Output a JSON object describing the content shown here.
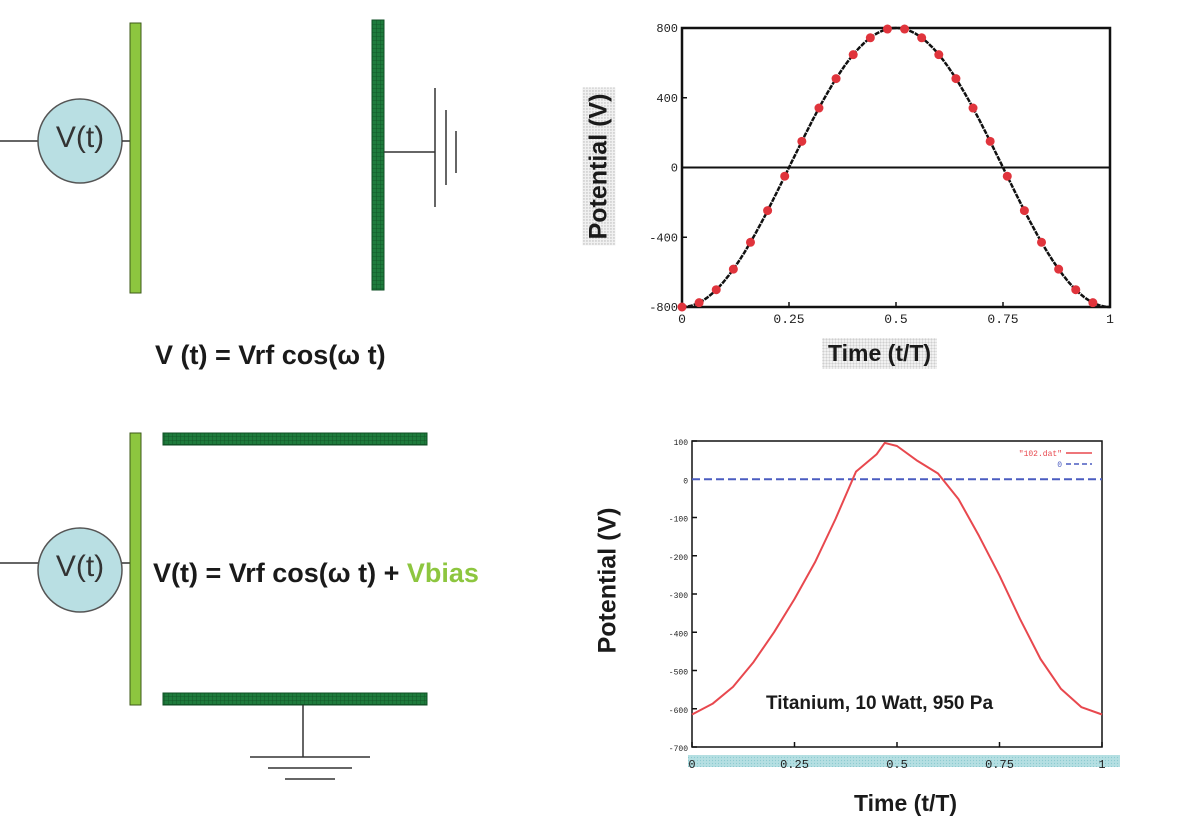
{
  "colors": {
    "powered_electrode": "#8dc63f",
    "grounded_electrode": "#1e7b3c",
    "source_fill": "#b9dfe3",
    "bias_text": "#8dc63f",
    "series_dots": "#e0343c",
    "series_red": "#e8484e",
    "series_blue": "#4a5cc0"
  },
  "diagram_top": {
    "source_label": "V(t)",
    "equation": "V (t) = Vrf cos(ω t)"
  },
  "diagram_bottom": {
    "source_label": "V(t)",
    "equation_main": "V(t) = Vrf cos(ω t) + ",
    "equation_bias": "Vbias"
  },
  "chart_data": [
    {
      "type": "line",
      "title": "",
      "xlabel": "Time (t/T)",
      "ylabel": "Potential (V)",
      "xlim": [
        0,
        1
      ],
      "ylim": [
        -800,
        800
      ],
      "xticks": [
        "0",
        "0.25",
        "0.5",
        "0.75",
        "1"
      ],
      "yticks": [
        "800",
        "400",
        "0",
        "-400",
        "-800"
      ],
      "zero_line": true,
      "series": [
        {
          "name": "V(t)",
          "style": "line-with-markers",
          "x": [
            0,
            0.04,
            0.08,
            0.12,
            0.16,
            0.2,
            0.24,
            0.28,
            0.32,
            0.36,
            0.4,
            0.44,
            0.48,
            0.52,
            0.56,
            0.6,
            0.64,
            0.68,
            0.72,
            0.76,
            0.8,
            0.84,
            0.88,
            0.92,
            0.96
          ],
          "y": [
            -800,
            -775,
            -701,
            -583,
            -429,
            -247,
            -50,
            150,
            341,
            510,
            647,
            744,
            794,
            794,
            744,
            647,
            510,
            341,
            150,
            -50,
            -247,
            -429,
            -583,
            -701,
            -775
          ]
        }
      ]
    },
    {
      "type": "line",
      "title": "",
      "annotation": "Titanium, 10 Watt, 950 Pa",
      "xlabel": "Time (t/T)",
      "ylabel": "Potential (V)",
      "xlim": [
        0,
        1
      ],
      "ylim": [
        -700,
        100
      ],
      "xticks": [
        "0",
        "0.25",
        "0.5",
        "0.75",
        "1"
      ],
      "yticks": [
        "100",
        "0",
        "-100",
        "-200",
        "-300",
        "-400",
        "-500",
        "-600",
        "-700"
      ],
      "legend_position": "top-right",
      "series": [
        {
          "name": "\"102.dat\"",
          "style": "solid-red",
          "x": [
            0,
            0.05,
            0.1,
            0.15,
            0.2,
            0.25,
            0.3,
            0.35,
            0.4,
            0.45,
            0.47,
            0.5,
            0.55,
            0.6,
            0.65,
            0.7,
            0.75,
            0.8,
            0.85,
            0.9,
            0.95,
            1
          ],
          "y": [
            -615,
            -587,
            -543,
            -478,
            -400,
            -313,
            -217,
            -104,
            20,
            65,
            95,
            87,
            48,
            15,
            -52,
            -148,
            -252,
            -365,
            -470,
            -548,
            -596,
            -615
          ]
        },
        {
          "name": "0",
          "style": "dashed-blue",
          "x": [
            0,
            1
          ],
          "y": [
            0,
            0
          ]
        }
      ]
    }
  ]
}
